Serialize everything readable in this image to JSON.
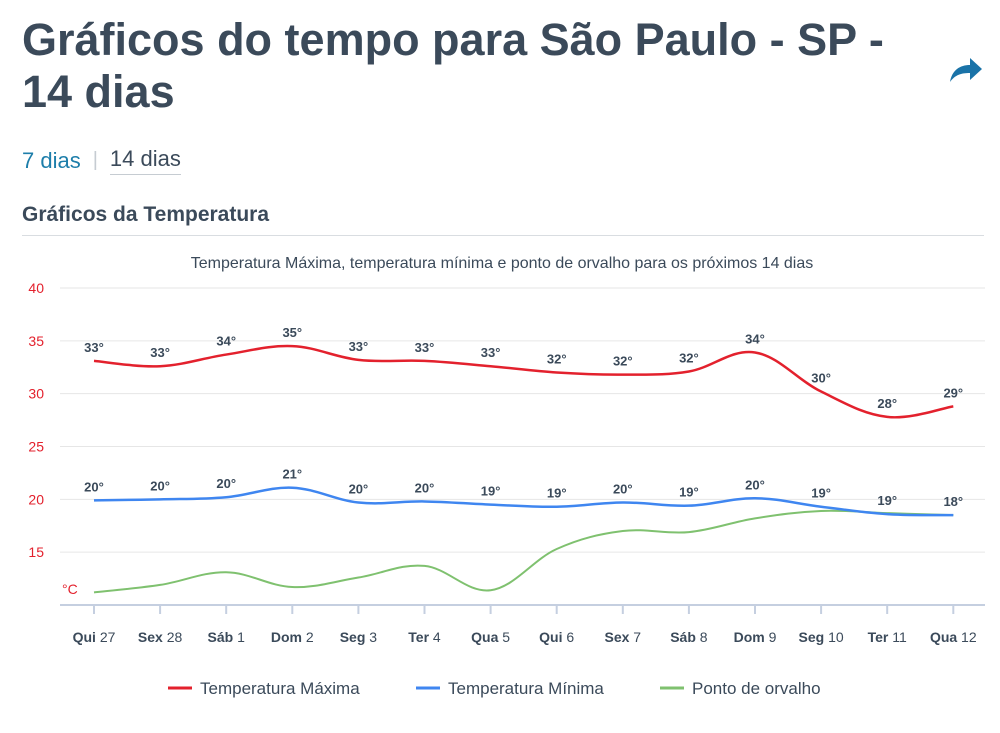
{
  "page": {
    "title": "Gráficos do tempo para São Paulo - SP - 14 dias",
    "share_icon": "share-icon"
  },
  "tabs": [
    {
      "label": "7 dias",
      "active": false
    },
    {
      "label": "14 dias",
      "active": true
    }
  ],
  "section": {
    "title": "Gráficos da Temperatura"
  },
  "colors": {
    "max": "#e3212d",
    "min": "#3f86f0",
    "dew": "#7fc16f",
    "axis_label": "#e3212d",
    "text": "#3b4a5a"
  },
  "chart_data": {
    "type": "line",
    "title": "Temperatura Máxima, temperatura mínima e ponto de orvalho para os próximos 14 dias",
    "unit_label": "°C",
    "ylim": [
      10,
      40
    ],
    "yticks": [
      15,
      20,
      25,
      30,
      35,
      40
    ],
    "grid": true,
    "legend_position": "bottom",
    "categories": [
      {
        "day": "Qui",
        "num": "27"
      },
      {
        "day": "Sex",
        "num": "28"
      },
      {
        "day": "Sáb",
        "num": "1"
      },
      {
        "day": "Dom",
        "num": "2"
      },
      {
        "day": "Seg",
        "num": "3"
      },
      {
        "day": "Ter",
        "num": "4"
      },
      {
        "day": "Qua",
        "num": "5"
      },
      {
        "day": "Qui",
        "num": "6"
      },
      {
        "day": "Sex",
        "num": "7"
      },
      {
        "day": "Sáb",
        "num": "8"
      },
      {
        "day": "Dom",
        "num": "9"
      },
      {
        "day": "Seg",
        "num": "10"
      },
      {
        "day": "Ter",
        "num": "11"
      },
      {
        "day": "Qua",
        "num": "12"
      }
    ],
    "series": [
      {
        "name": "Temperatura Máxima",
        "key": "max",
        "values": [
          33.1,
          32.6,
          33.7,
          34.5,
          33.2,
          33.1,
          32.6,
          32.0,
          31.8,
          32.1,
          33.9,
          30.2,
          27.8,
          28.8
        ],
        "labels": [
          "33°",
          "33°",
          "34°",
          "35°",
          "33°",
          "33°",
          "33°",
          "32°",
          "32°",
          "32°",
          "34°",
          "30°",
          "28°",
          "29°"
        ]
      },
      {
        "name": "Temperatura Mínima",
        "key": "min",
        "values": [
          19.9,
          20.0,
          20.2,
          21.1,
          19.7,
          19.8,
          19.5,
          19.3,
          19.7,
          19.4,
          20.1,
          19.3,
          18.6,
          18.5
        ],
        "labels": [
          "20°",
          "20°",
          "20°",
          "21°",
          "20°",
          "20°",
          "19°",
          "19°",
          "20°",
          "19°",
          "20°",
          "19°",
          "19°",
          "18°"
        ]
      },
      {
        "name": "Ponto de orvalho",
        "key": "dew",
        "values": [
          11.2,
          11.9,
          13.1,
          11.7,
          12.6,
          13.7,
          11.4,
          15.3,
          17.0,
          16.9,
          18.2,
          18.9,
          18.7,
          18.5
        ]
      }
    ]
  }
}
